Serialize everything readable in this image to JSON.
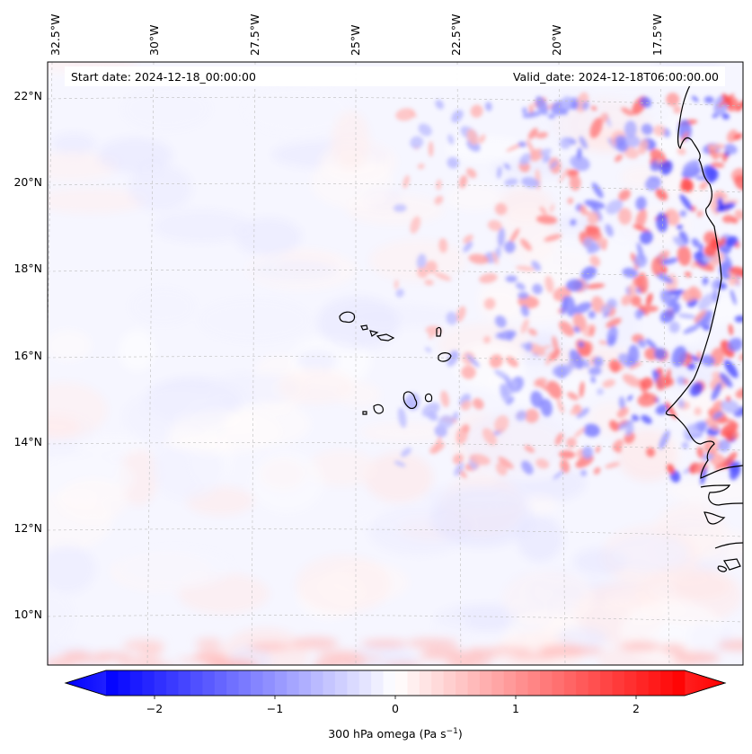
{
  "header": {
    "start_text": "Start date: 2024-12-18_00:00:00",
    "valid_text": "Valid_date: 2024-12-18T06:00:00.00"
  },
  "longitude_labels": [
    "32.5°W",
    "30°W",
    "27.5°W",
    "25°W",
    "22.5°W",
    "20°W",
    "17.5°W"
  ],
  "latitude_labels": [
    "22°N",
    "20°N",
    "18°N",
    "16°N",
    "14°N",
    "12°N",
    "10°N"
  ],
  "colorbar": {
    "label_html": "300 hPa omega (Pa s<tspan baseline-shift=\"super\" font-size=\"9\">−1</tspan>)",
    "ticks": [
      "−2",
      "−1",
      "0",
      "1",
      "2"
    ],
    "vmin": -2.75,
    "vmax": 2.75,
    "colors": {
      "low": "#0000ff",
      "mid": "#ffffff",
      "high": "#ff0000"
    }
  },
  "map": {
    "variable": "300 hPa omega",
    "colormap": "bwr",
    "gridlines": true,
    "coastline_color": "#000000"
  }
}
